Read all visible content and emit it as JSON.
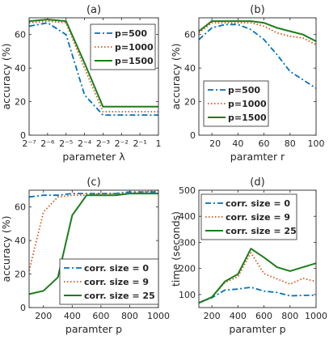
{
  "chart_data": [
    {
      "panel": "a",
      "type": "line",
      "title": "(a)",
      "xlabel": "parameter λ",
      "ylabel": "accuracy (%)",
      "x": [
        -7,
        -6,
        -5,
        -4,
        -3,
        -2,
        -1,
        0
      ],
      "xtick_labels": [
        "2⁻⁷",
        "2⁻⁶",
        "2⁻⁵",
        "2⁻⁴",
        "2⁻³",
        "2⁻²",
        "2⁻¹",
        "1"
      ],
      "ylim": [
        0,
        70
      ],
      "yticks": [
        0,
        20,
        40,
        60
      ],
      "legend_position": "top-right",
      "series": [
        {
          "name": "p=500",
          "style": "dash-dot",
          "color": "#0072BD",
          "values": [
            65,
            67,
            60,
            24,
            12,
            12,
            12,
            12
          ]
        },
        {
          "name": "p=1000",
          "style": "dotted",
          "color": "#D95319",
          "values": [
            67,
            68,
            67,
            40,
            14,
            14,
            14,
            14
          ]
        },
        {
          "name": "p=1500",
          "style": "solid",
          "color": "#1B7D1B",
          "values": [
            68,
            69,
            68,
            43,
            17,
            17,
            17,
            17
          ]
        }
      ]
    },
    {
      "panel": "b",
      "type": "line",
      "title": "(b)",
      "xlabel": "paramter r",
      "ylabel": "accuracy (%)",
      "x": [
        10,
        20,
        30,
        40,
        50,
        60,
        70,
        80,
        90,
        100
      ],
      "xlim": [
        10,
        100
      ],
      "xticks": [
        20,
        40,
        60,
        80,
        100
      ],
      "ylim": [
        0,
        70
      ],
      "yticks": [
        0,
        20,
        40,
        60
      ],
      "legend_position": "bottom-left",
      "series": [
        {
          "name": "p=500",
          "style": "dash-dot",
          "color": "#0072BD",
          "values": [
            57,
            64,
            66,
            66,
            63,
            57,
            48,
            38,
            33,
            28
          ]
        },
        {
          "name": "p=1000",
          "style": "dotted",
          "color": "#D95319",
          "values": [
            61,
            67,
            67,
            67,
            67,
            65,
            61,
            59,
            58,
            54
          ]
        },
        {
          "name": "p=1500",
          "style": "solid",
          "color": "#1B7D1B",
          "values": [
            62,
            68,
            68,
            68,
            68,
            67,
            64,
            62,
            60,
            56
          ]
        }
      ]
    },
    {
      "panel": "c",
      "type": "line",
      "title": "(c)",
      "xlabel": "paramter p",
      "ylabel": "accuracy (%)",
      "x": [
        100,
        200,
        300,
        400,
        500,
        600,
        700,
        800,
        900,
        1000
      ],
      "xlim": [
        100,
        1000
      ],
      "xticks": [
        200,
        400,
        600,
        800,
        1000
      ],
      "ylim": [
        0,
        70
      ],
      "yticks": [
        0,
        20,
        40,
        60
      ],
      "legend_position": "bottom-right",
      "series": [
        {
          "name": "corr. size = 0",
          "style": "dash-dot",
          "color": "#0072BD",
          "values": [
            66,
            67,
            67,
            68,
            68,
            68,
            68,
            69,
            69,
            69
          ]
        },
        {
          "name": "corr. size = 9",
          "style": "dotted",
          "color": "#D95319",
          "values": [
            22,
            57,
            66,
            67,
            67,
            68,
            68,
            68,
            69,
            70
          ]
        },
        {
          "name": "corr. size = 25",
          "style": "solid",
          "color": "#1B7D1B",
          "values": [
            8,
            10,
            18,
            55,
            67,
            67,
            67,
            68,
            68,
            68
          ]
        }
      ]
    },
    {
      "panel": "d",
      "type": "line",
      "title": "(d)",
      "xlabel": "paramter p",
      "ylabel": "time (seconds)",
      "x": [
        100,
        200,
        300,
        400,
        500,
        600,
        700,
        800,
        900,
        1000
      ],
      "xlim": [
        100,
        1000
      ],
      "xticks": [
        200,
        400,
        600,
        800,
        1000
      ],
      "ylim": [
        50,
        500
      ],
      "yticks": [
        100,
        200,
        300,
        400,
        500
      ],
      "legend_position": "top-left",
      "series": [
        {
          "name": "corr. size = 0",
          "style": "dash-dot",
          "color": "#0072BD",
          "values": [
            68,
            88,
            117,
            121,
            128,
            113,
            108,
            95,
            97,
            97
          ]
        },
        {
          "name": "corr. size = 9",
          "style": "dotted",
          "color": "#D95319",
          "values": [
            68,
            90,
            146,
            168,
            260,
            180,
            160,
            140,
            162,
            150
          ]
        },
        {
          "name": "corr. size = 25",
          "style": "solid",
          "color": "#1B7D1B",
          "values": [
            68,
            90,
            150,
            178,
            276,
            242,
            205,
            190,
            205,
            220
          ]
        }
      ]
    }
  ]
}
